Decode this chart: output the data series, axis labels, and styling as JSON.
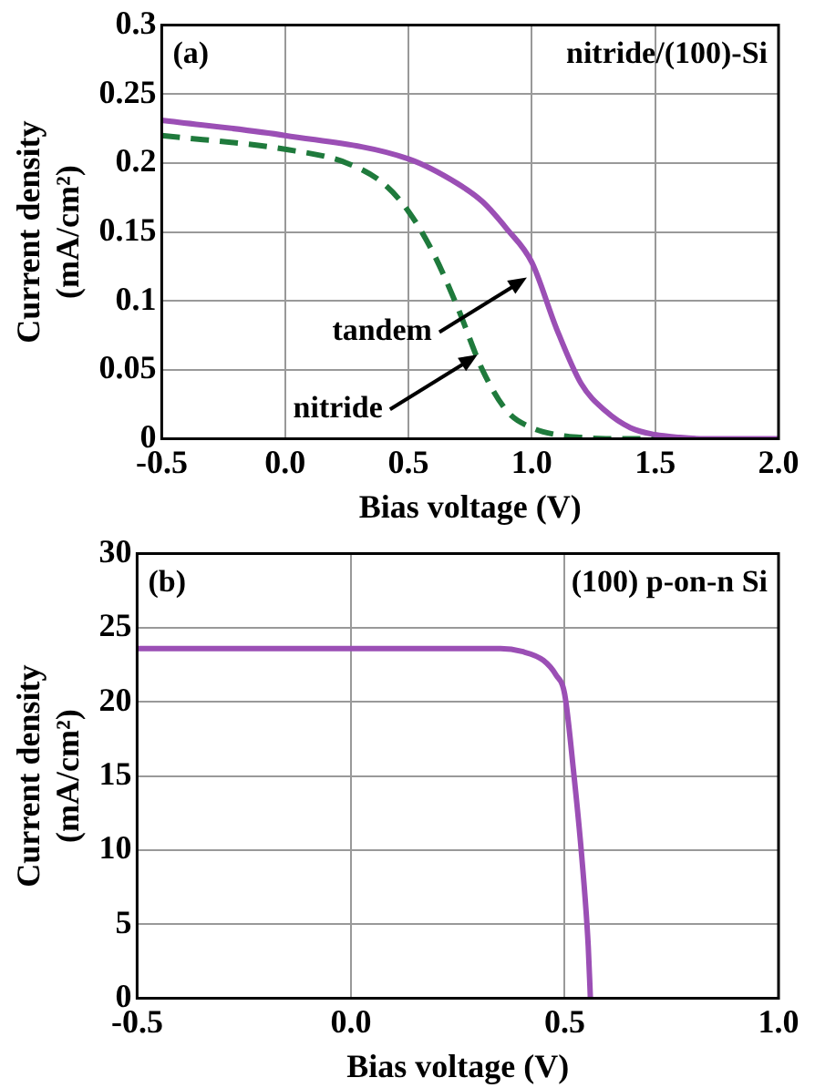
{
  "chart_data": [
    {
      "type": "line",
      "xlabel": "Bias voltage (V)",
      "ylabel": "Current density\n(mA/cm²)",
      "xlim": [
        -0.5,
        2.0
      ],
      "xticks": [
        {
          "value": -0.5,
          "label": "-0.5"
        },
        {
          "value": 0,
          "label": "0.0"
        },
        {
          "value": 0.5,
          "label": "0.5"
        },
        {
          "value": 1,
          "label": "1.0"
        },
        {
          "value": 1.5,
          "label": "1.5"
        },
        {
          "value": 2,
          "label": "2.0"
        }
      ],
      "ylim": [
        0,
        0.3
      ],
      "yticks": [
        0,
        0.05,
        0.1,
        0.15,
        0.2,
        0.25,
        0.3
      ],
      "grid": true,
      "marker": "none",
      "annotations": [
        "(a)",
        "nitride/(100)-Si",
        {
          "text": "tandem",
          "x": 0.98,
          "y": 0.117
        },
        {
          "text": "nitride",
          "x": 0.78,
          "y": 0.061
        }
      ],
      "series": [
        {
          "color": "#9b4fb5",
          "line_style": "solid",
          "x": [
            -0.5,
            0,
            0.5,
            0.7,
            0.8,
            0.9,
            1.0,
            1.1,
            1.2,
            1.3,
            1.4,
            1.5,
            1.6,
            1.7,
            2.0
          ],
          "values": [
            0.231,
            0.22,
            0.203,
            0.185,
            0.172,
            0.152,
            0.128,
            0.08,
            0.04,
            0.02,
            0.008,
            0.003,
            0.001,
            0,
            0
          ]
        },
        {
          "color": "#1f7a3c",
          "line_style": "dashed",
          "x": [
            -0.5,
            0,
            0.25,
            0.4,
            0.5,
            0.6,
            0.7,
            0.8,
            0.9,
            1.0,
            1.1,
            1.2,
            1.3,
            1.5
          ],
          "values": [
            0.22,
            0.21,
            0.2,
            0.185,
            0.165,
            0.135,
            0.095,
            0.05,
            0.02,
            0.008,
            0.003,
            0.001,
            0,
            0
          ]
        }
      ]
    },
    {
      "type": "line",
      "xlabel": "Bias voltage (V)",
      "ylabel": "Current density\n(mA/cm²)",
      "xlim": [
        -0.5,
        1.0
      ],
      "xticks": [
        {
          "value": -0.5,
          "label": "-0.5"
        },
        {
          "value": 0,
          "label": "0.0"
        },
        {
          "value": 0.5,
          "label": "0.5"
        },
        {
          "value": 1,
          "label": "1.0"
        }
      ],
      "ylim": [
        0,
        30
      ],
      "yticks": [
        0,
        5,
        10,
        15,
        20,
        25,
        30
      ],
      "grid": true,
      "marker": "none",
      "annotations": [
        "(b)",
        "(100) p-on-n Si"
      ],
      "series": [
        {
          "color": "#9b4fb5",
          "line_style": "solid",
          "x": [
            -0.5,
            0,
            0.35,
            0.4,
            0.45,
            0.48,
            0.5,
            0.52,
            0.54,
            0.555,
            0.56
          ],
          "values": [
            23.6,
            23.6,
            23.6,
            23.4,
            22.8,
            21.8,
            20.5,
            15.5,
            9.5,
            3.5,
            0
          ]
        }
      ]
    }
  ]
}
